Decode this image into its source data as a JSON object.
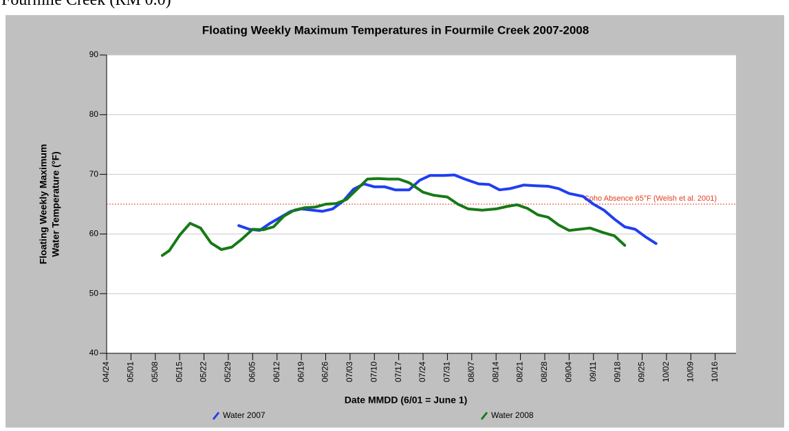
{
  "page_heading": "Fourmile Creek (RM 0.0)",
  "chart_data": {
    "type": "line",
    "title": "Floating Weekly Maximum Temperatures in Fourmile Creek 2007-2008",
    "y_label": [
      "Floating Weekly Maximum",
      "Water Temperature (°F)"
    ],
    "x_label": "Date MMDD (6/01 = June 1)",
    "xlim": [
      "04/24",
      "10/22"
    ],
    "xticks": [
      "04/24",
      "05/01",
      "05/08",
      "05/15",
      "05/22",
      "05/29",
      "06/05",
      "06/12",
      "06/19",
      "06/26",
      "07/03",
      "07/10",
      "07/17",
      "07/24",
      "07/31",
      "08/07",
      "08/14",
      "08/21",
      "08/28",
      "09/04",
      "09/11",
      "09/18",
      "09/25",
      "10/02",
      "10/09",
      "10/16"
    ],
    "ylim": [
      40,
      90
    ],
    "yticks": [
      40,
      50,
      60,
      70,
      80,
      90
    ],
    "grid": true,
    "reference": {
      "value": 65,
      "label": "Coho Absence 65°F (Welsh et al. 2001)",
      "color": "#e03c1e"
    },
    "series": [
      {
        "name": "Water 2007",
        "color": "#1f3ff0",
        "x": [
          "06/01",
          "06/04",
          "06/07",
          "06/10",
          "06/13",
          "06/16",
          "06/19",
          "06/22",
          "06/25",
          "06/28",
          "07/01",
          "07/04",
          "07/07",
          "07/10",
          "07/13",
          "07/16",
          "07/20",
          "07/23",
          "07/26",
          "07/30",
          "08/02",
          "08/05",
          "08/09",
          "08/12",
          "08/15",
          "08/18",
          "08/22",
          "08/25",
          "08/29",
          "09/01",
          "09/04",
          "09/08",
          "09/11",
          "09/14",
          "09/17",
          "09/20",
          "09/23",
          "09/26",
          "09/29"
        ],
        "values": [
          61.4,
          60.8,
          60.6,
          61.8,
          62.8,
          63.8,
          64.2,
          64.0,
          63.8,
          64.2,
          65.5,
          67.5,
          68.4,
          67.9,
          67.9,
          67.4,
          67.4,
          69.0,
          69.8,
          69.8,
          69.9,
          69.2,
          68.4,
          68.3,
          67.4,
          67.6,
          68.2,
          68.1,
          68.0,
          67.6,
          66.8,
          66.3,
          65.0,
          64.0,
          62.5,
          61.2,
          60.8,
          59.5,
          58.4
        ]
      },
      {
        "name": "Water 2008",
        "color": "#167a16",
        "x": [
          "05/10",
          "05/12",
          "05/15",
          "05/18",
          "05/21",
          "05/24",
          "05/27",
          "05/30",
          "06/02",
          "06/05",
          "06/08",
          "06/11",
          "06/14",
          "06/17",
          "06/20",
          "06/23",
          "06/26",
          "06/29",
          "07/02",
          "07/05",
          "07/08",
          "07/11",
          "07/14",
          "07/17",
          "07/20",
          "07/24",
          "07/27",
          "07/31",
          "08/03",
          "08/06",
          "08/10",
          "08/14",
          "08/17",
          "08/20",
          "08/23",
          "08/26",
          "08/29",
          "09/01",
          "09/04",
          "09/07",
          "09/10",
          "09/14",
          "09/17",
          "09/20"
        ],
        "values": [
          56.4,
          57.2,
          59.8,
          61.8,
          61.0,
          58.5,
          57.4,
          57.8,
          59.2,
          60.8,
          60.7,
          61.2,
          63.0,
          64.0,
          64.4,
          64.5,
          65.0,
          65.1,
          65.8,
          67.5,
          69.2,
          69.3,
          69.2,
          69.2,
          68.6,
          67.0,
          66.5,
          66.2,
          65.0,
          64.2,
          64.0,
          64.2,
          64.6,
          64.9,
          64.3,
          63.2,
          62.8,
          61.5,
          60.6,
          60.8,
          61.0,
          60.2,
          59.7,
          58.1
        ]
      }
    ]
  }
}
